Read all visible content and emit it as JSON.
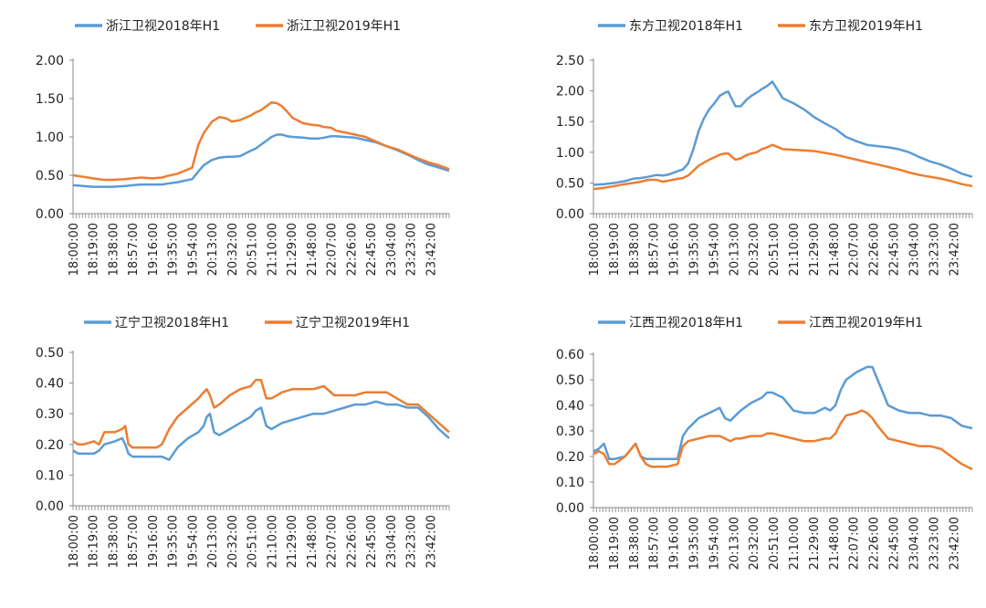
{
  "chart_data": [
    {
      "type": "line",
      "legend_position": "top",
      "ylim": [
        0,
        2.0
      ],
      "yticks": [
        "0.00",
        "0.50",
        "1.00",
        "1.50",
        "2.00"
      ],
      "x_tick_labels": [
        "18:00:00",
        "18:19:00",
        "18:38:00",
        "18:57:00",
        "19:16:00",
        "19:35:00",
        "19:54:00",
        "20:13:00",
        "20:32:00",
        "20:51:00",
        "21:10:00",
        "21:29:00",
        "21:48:00",
        "22:07:00",
        "22:26:00",
        "22:45:00",
        "23:04:00",
        "23:23:00",
        "23:42:00"
      ],
      "x_minutes": [
        0,
        10,
        19,
        30,
        38,
        50,
        57,
        65,
        76,
        85,
        90,
        100,
        114,
        120,
        125,
        133,
        140,
        147,
        152,
        160,
        170,
        175,
        180,
        185,
        190,
        195,
        200,
        205,
        210,
        220,
        228,
        235,
        240,
        247,
        252,
        260,
        270,
        280,
        290,
        300,
        310,
        320,
        330,
        340,
        350,
        360
      ],
      "series": [
        {
          "name": "浙江卫视2018年H1",
          "color": "#5b9bd5",
          "values": [
            0.37,
            0.36,
            0.35,
            0.35,
            0.35,
            0.36,
            0.37,
            0.38,
            0.38,
            0.38,
            0.39,
            0.41,
            0.45,
            0.55,
            0.63,
            0.7,
            0.73,
            0.74,
            0.74,
            0.75,
            0.82,
            0.85,
            0.9,
            0.95,
            1.0,
            1.03,
            1.03,
            1.01,
            1.0,
            0.99,
            0.98,
            0.98,
            0.99,
            1.01,
            1.01,
            1.0,
            0.99,
            0.96,
            0.93,
            0.88,
            0.83,
            0.77,
            0.7,
            0.64,
            0.6,
            0.56
          ]
        },
        {
          "name": "浙江卫视2019年H1",
          "color": "#ed7d31",
          "values": [
            0.5,
            0.48,
            0.46,
            0.44,
            0.44,
            0.45,
            0.46,
            0.47,
            0.46,
            0.47,
            0.49,
            0.52,
            0.6,
            0.9,
            1.05,
            1.2,
            1.26,
            1.24,
            1.2,
            1.22,
            1.28,
            1.32,
            1.35,
            1.4,
            1.45,
            1.44,
            1.4,
            1.33,
            1.25,
            1.18,
            1.16,
            1.15,
            1.13,
            1.12,
            1.08,
            1.06,
            1.03,
            1.0,
            0.94,
            0.88,
            0.84,
            0.78,
            0.72,
            0.67,
            0.63,
            0.58
          ]
        }
      ]
    },
    {
      "type": "line",
      "legend_position": "top",
      "ylim": [
        0,
        2.5
      ],
      "yticks": [
        "0.00",
        "0.50",
        "1.00",
        "1.50",
        "2.00",
        "2.50"
      ],
      "x_tick_labels": [
        "18:00:00",
        "18:19:00",
        "18:38:00",
        "18:57:00",
        "19:16:00",
        "19:35:00",
        "19:54:00",
        "20:13:00",
        "20:32:00",
        "20:51:00",
        "21:10:00",
        "21:29:00",
        "21:48:00",
        "22:07:00",
        "22:26:00",
        "22:45:00",
        "23:04:00",
        "23:23:00",
        "23:42:00"
      ],
      "x_minutes": [
        0,
        10,
        20,
        30,
        38,
        45,
        52,
        60,
        66,
        72,
        78,
        85,
        90,
        95,
        100,
        105,
        110,
        115,
        120,
        125,
        128,
        132,
        135,
        140,
        145,
        150,
        155,
        160,
        165,
        170,
        180,
        190,
        200,
        210,
        220,
        230,
        240,
        250,
        260,
        270,
        280,
        290,
        300,
        310,
        320,
        330,
        340,
        350,
        360
      ],
      "series": [
        {
          "name": "东方卫视2018年H1",
          "color": "#5b9bd5",
          "values": [
            0.47,
            0.48,
            0.5,
            0.53,
            0.57,
            0.58,
            0.6,
            0.63,
            0.62,
            0.64,
            0.68,
            0.72,
            0.82,
            1.05,
            1.35,
            1.55,
            1.7,
            1.8,
            1.92,
            1.97,
            1.99,
            1.85,
            1.75,
            1.75,
            1.85,
            1.92,
            1.97,
            2.03,
            2.08,
            2.15,
            1.88,
            1.8,
            1.7,
            1.57,
            1.47,
            1.38,
            1.25,
            1.18,
            1.12,
            1.1,
            1.08,
            1.05,
            1.0,
            0.92,
            0.85,
            0.8,
            0.73,
            0.65,
            0.6
          ]
        },
        {
          "name": "东方卫视2019年H1",
          "color": "#ed7d31",
          "values": [
            0.4,
            0.42,
            0.45,
            0.48,
            0.5,
            0.52,
            0.55,
            0.55,
            0.52,
            0.54,
            0.56,
            0.58,
            0.62,
            0.7,
            0.78,
            0.83,
            0.88,
            0.92,
            0.96,
            0.98,
            0.98,
            0.92,
            0.88,
            0.9,
            0.95,
            0.98,
            1.0,
            1.05,
            1.08,
            1.12,
            1.05,
            1.04,
            1.03,
            1.02,
            0.99,
            0.96,
            0.92,
            0.88,
            0.84,
            0.8,
            0.76,
            0.72,
            0.67,
            0.63,
            0.6,
            0.57,
            0.53,
            0.48,
            0.45
          ]
        }
      ]
    },
    {
      "type": "line",
      "legend_position": "top",
      "ylim": [
        0,
        0.5
      ],
      "yticks": [
        "0.00",
        "0.10",
        "0.20",
        "0.30",
        "0.40",
        "0.50"
      ],
      "x_tick_labels": [
        "18:00:00",
        "18:19:00",
        "18:38:00",
        "18:57:00",
        "19:16:00",
        "19:35:00",
        "19:54:00",
        "20:13:00",
        "20:32:00",
        "20:51:00",
        "21:10:00",
        "21:29:00",
        "21:48:00",
        "22:07:00",
        "22:26:00",
        "22:45:00",
        "23:04:00",
        "23:23:00",
        "23:42:00"
      ],
      "x_minutes": [
        0,
        5,
        10,
        20,
        25,
        30,
        40,
        47,
        50,
        53,
        57,
        65,
        80,
        85,
        92,
        100,
        110,
        120,
        125,
        128,
        131,
        135,
        140,
        150,
        160,
        170,
        175,
        180,
        185,
        190,
        200,
        210,
        220,
        230,
        240,
        250,
        260,
        270,
        280,
        290,
        300,
        310,
        320,
        330,
        340,
        350,
        360
      ],
      "series": [
        {
          "name": "辽宁卫视2018年H1",
          "color": "#5b9bd5",
          "values": [
            0.18,
            0.17,
            0.17,
            0.17,
            0.18,
            0.2,
            0.21,
            0.22,
            0.2,
            0.17,
            0.16,
            0.16,
            0.16,
            0.16,
            0.15,
            0.19,
            0.22,
            0.24,
            0.26,
            0.29,
            0.3,
            0.24,
            0.23,
            0.25,
            0.27,
            0.29,
            0.31,
            0.32,
            0.26,
            0.25,
            0.27,
            0.28,
            0.29,
            0.3,
            0.3,
            0.31,
            0.32,
            0.33,
            0.33,
            0.34,
            0.33,
            0.33,
            0.32,
            0.32,
            0.29,
            0.25,
            0.22
          ]
        },
        {
          "name": "辽宁卫视2019年H1",
          "color": "#ed7d31",
          "values": [
            0.21,
            0.2,
            0.2,
            0.21,
            0.2,
            0.24,
            0.24,
            0.25,
            0.26,
            0.2,
            0.19,
            0.19,
            0.19,
            0.2,
            0.25,
            0.29,
            0.32,
            0.35,
            0.37,
            0.38,
            0.36,
            0.32,
            0.33,
            0.36,
            0.38,
            0.39,
            0.41,
            0.41,
            0.35,
            0.35,
            0.37,
            0.38,
            0.38,
            0.38,
            0.39,
            0.36,
            0.36,
            0.36,
            0.37,
            0.37,
            0.37,
            0.35,
            0.33,
            0.33,
            0.3,
            0.27,
            0.24
          ]
        }
      ]
    },
    {
      "type": "line",
      "legend_position": "top",
      "ylim": [
        0,
        0.6
      ],
      "yticks": [
        "0.00",
        "0.10",
        "0.20",
        "0.30",
        "0.40",
        "0.50",
        "0.60"
      ],
      "x_tick_labels": [
        "18:00:00",
        "18:19:00",
        "18:38:00",
        "18:57:00",
        "19:16:00",
        "19:35:00",
        "19:54:00",
        "20:13:00",
        "20:32:00",
        "20:51:00",
        "21:10:00",
        "21:29:00",
        "21:48:00",
        "22:07:00",
        "22:26:00",
        "22:45:00",
        "23:04:00",
        "23:23:00",
        "23:42:00"
      ],
      "x_minutes": [
        0,
        5,
        10,
        15,
        20,
        30,
        40,
        45,
        50,
        55,
        60,
        70,
        80,
        85,
        90,
        100,
        110,
        120,
        125,
        130,
        135,
        140,
        150,
        160,
        165,
        170,
        180,
        190,
        200,
        210,
        220,
        225,
        230,
        235,
        240,
        250,
        255,
        260,
        265,
        270,
        280,
        290,
        300,
        310,
        320,
        330,
        340,
        350,
        360
      ],
      "series": [
        {
          "name": "江西卫视2018年H1",
          "color": "#5b9bd5",
          "values": [
            0.22,
            0.23,
            0.25,
            0.19,
            0.19,
            0.2,
            0.25,
            0.2,
            0.19,
            0.19,
            0.19,
            0.19,
            0.19,
            0.28,
            0.31,
            0.35,
            0.37,
            0.39,
            0.35,
            0.34,
            0.36,
            0.38,
            0.41,
            0.43,
            0.45,
            0.45,
            0.43,
            0.38,
            0.37,
            0.37,
            0.39,
            0.38,
            0.4,
            0.46,
            0.5,
            0.53,
            0.54,
            0.55,
            0.55,
            0.5,
            0.4,
            0.38,
            0.37,
            0.37,
            0.36,
            0.36,
            0.35,
            0.32,
            0.31
          ]
        },
        {
          "name": "江西卫视2019年H1",
          "color": "#ed7d31",
          "values": [
            0.21,
            0.22,
            0.21,
            0.17,
            0.17,
            0.2,
            0.25,
            0.2,
            0.17,
            0.16,
            0.16,
            0.16,
            0.17,
            0.24,
            0.26,
            0.27,
            0.28,
            0.28,
            0.27,
            0.26,
            0.27,
            0.27,
            0.28,
            0.28,
            0.29,
            0.29,
            0.28,
            0.27,
            0.26,
            0.26,
            0.27,
            0.27,
            0.29,
            0.33,
            0.36,
            0.37,
            0.38,
            0.37,
            0.35,
            0.32,
            0.27,
            0.26,
            0.25,
            0.24,
            0.24,
            0.23,
            0.2,
            0.17,
            0.15
          ]
        }
      ]
    }
  ]
}
